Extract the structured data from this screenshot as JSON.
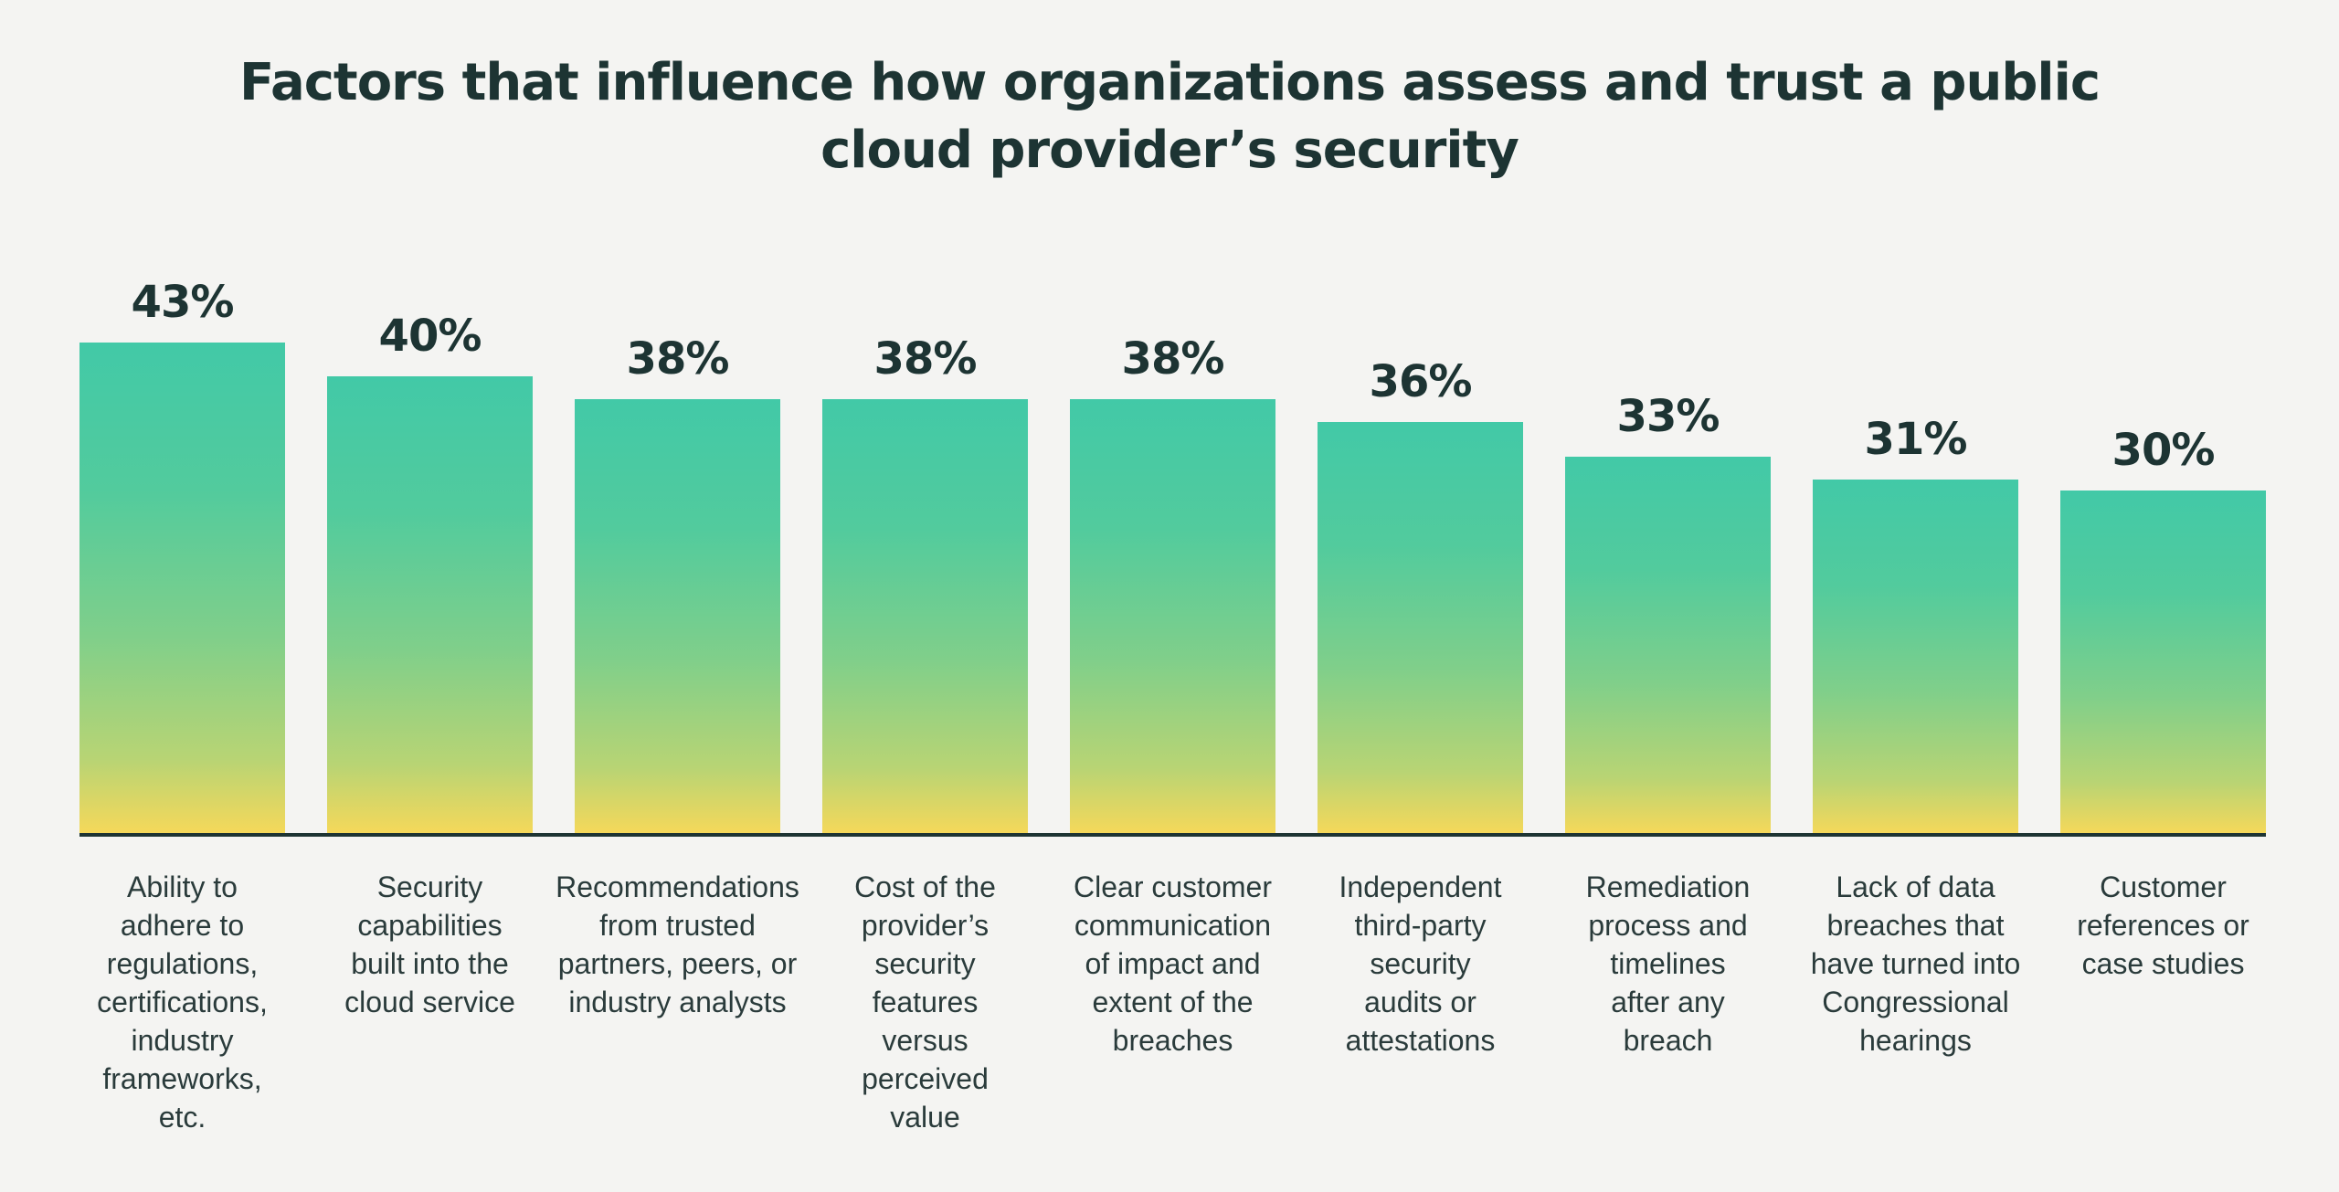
{
  "chart_data": {
    "type": "bar",
    "title": "Factors that influence how organizations assess and trust a public cloud provider’s security",
    "title_lines": [
      "Factors that influence how organizations assess and trust a public",
      "cloud provider’s security"
    ],
    "xlabel": "",
    "ylabel": "",
    "ylim": [
      0,
      43
    ],
    "grid": false,
    "categories": [
      [
        "Ability to",
        "adhere to",
        "regulations,",
        "certifications,",
        "industry",
        "frameworks,",
        "etc."
      ],
      [
        "Security",
        "capabilities",
        "built into the",
        "cloud service"
      ],
      [
        "Recommendations",
        "from trusted",
        "partners, peers, or",
        "industry analysts"
      ],
      [
        "Cost of the",
        "provider’s",
        "security",
        "features",
        "versus",
        "perceived",
        "value"
      ],
      [
        "Clear customer",
        "communication",
        "of impact and",
        "extent of the",
        "breaches"
      ],
      [
        "Independent",
        "third-party",
        "security",
        "audits or",
        "attestations"
      ],
      [
        "Remediation",
        "process and",
        "timelines",
        "after any",
        "breach"
      ],
      [
        "Lack of data",
        "breaches that",
        "have turned into",
        "Congressional",
        "hearings"
      ],
      [
        "Customer",
        "references or",
        "case studies"
      ]
    ],
    "values": [
      43,
      40,
      38,
      38,
      38,
      36,
      33,
      31,
      30
    ],
    "value_labels": [
      "43%",
      "40%",
      "38%",
      "38%",
      "38%",
      "36%",
      "33%",
      "31%",
      "30%"
    ],
    "colors": {
      "gradient_top": "#42c9a7",
      "gradient_bottom": "#f5d85a",
      "text": "#1d3433",
      "background": "#f4f4f2"
    }
  }
}
